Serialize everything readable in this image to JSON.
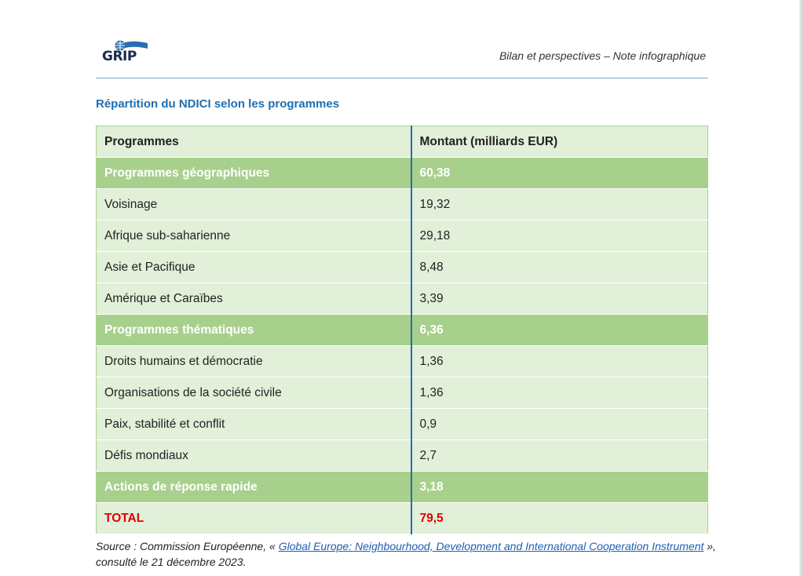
{
  "header": {
    "logo_text": "GRIP",
    "publication": "Bilan et perspectives – Note infographique",
    "rule_color": "#7fa7d6"
  },
  "table_title": "Répartition du NDICI selon les programmes",
  "table": {
    "headers": [
      "Programmes",
      "Montant (milliards EUR)"
    ],
    "rows": [
      {
        "type": "group",
        "program": "Programmes géographiques",
        "amount": "60,38"
      },
      {
        "type": "item",
        "program": "Voisinage",
        "amount": "19,32"
      },
      {
        "type": "item",
        "program": "Afrique sub-saharienne",
        "amount": "29,18"
      },
      {
        "type": "item",
        "program": "Asie et Pacifique",
        "amount": "8,48"
      },
      {
        "type": "item",
        "program": "Amérique et Caraïbes",
        "amount": "3,39"
      },
      {
        "type": "group",
        "program": "Programmes thématiques",
        "amount": "6,36"
      },
      {
        "type": "item",
        "program": "Droits humains et démocratie",
        "amount": "1,36"
      },
      {
        "type": "item",
        "program": "Organisations de la société civile",
        "amount": "1,36"
      },
      {
        "type": "item",
        "program": "Paix, stabilité et conflit",
        "amount": "0,9"
      },
      {
        "type": "item",
        "program": "Défis mondiaux",
        "amount": "2,7"
      },
      {
        "type": "group",
        "program": "Actions de réponse rapide",
        "amount": "3,18"
      },
      {
        "type": "total",
        "program": "TOTAL",
        "amount": "79,5"
      }
    ],
    "colors": {
      "group_row": "#a8d08d",
      "item_row": "#e2efd9",
      "total_text": "#e00000",
      "column_divider": "#1f6fb2"
    }
  },
  "source": {
    "prefix": "Source : Commission Européenne, « ",
    "link_text": "Global Europe: Neighbourhood, Development and International Cooperation Instrument",
    "suffix": " », consulté le 21 décembre 2023."
  }
}
